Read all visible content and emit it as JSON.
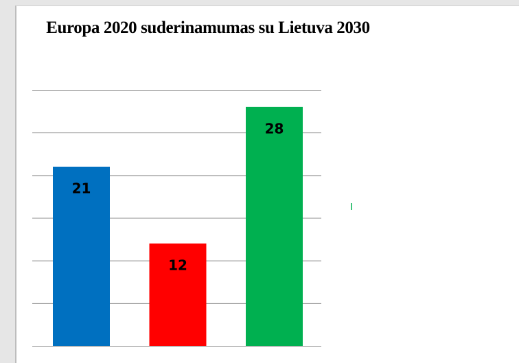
{
  "chart_data": {
    "type": "bar",
    "title": "Europa 2020 suderinamumas su Lietuva 2030",
    "categories": [
      null,
      null,
      null
    ],
    "values": [
      21,
      12,
      28
    ],
    "colors": [
      "#0070c0",
      "#ff0000",
      "#00b050"
    ],
    "ylim": [
      0,
      30
    ],
    "yticks": [
      0,
      5,
      10,
      15,
      20,
      25,
      30
    ],
    "grid": true
  }
}
